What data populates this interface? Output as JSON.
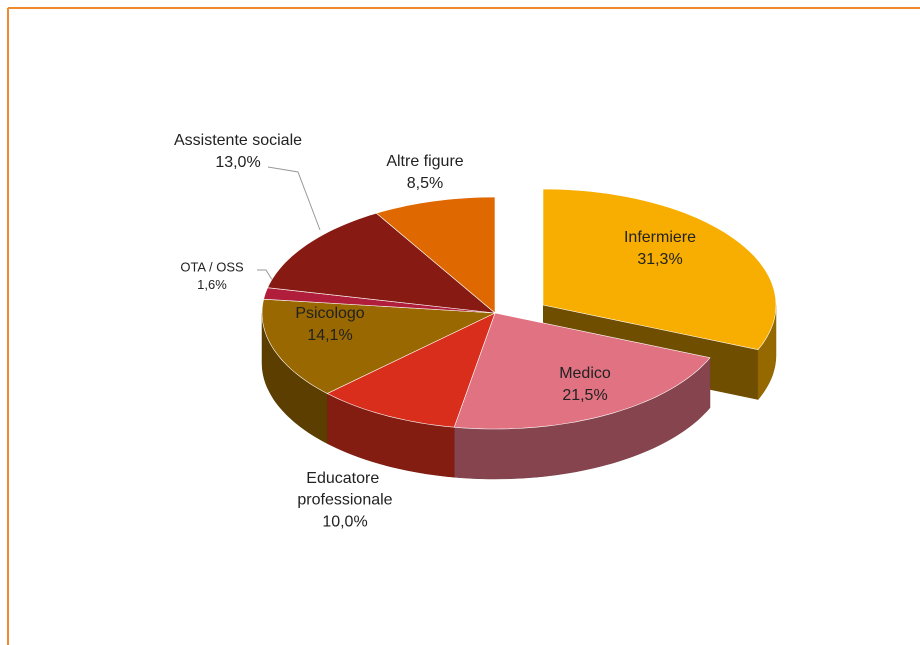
{
  "chart_data": {
    "type": "pie",
    "categories": [
      "Infermiere",
      "Medico",
      "Educatore professionale",
      "Psicologo",
      "OTA / OSS",
      "Assistente sociale",
      "Altre figure"
    ],
    "values": [
      31.3,
      21.5,
      10.0,
      14.1,
      1.6,
      13.0,
      8.5
    ],
    "value_labels": [
      "31,3%",
      "21,5%",
      "10,0%",
      "14,1%",
      "1,6%",
      "13,0%",
      "8,5%"
    ],
    "colors": [
      "#f8ae00",
      "#e07282",
      "#da2e1c",
      "#996800",
      "#b01e3c",
      "#871a12",
      "#df6800"
    ]
  }
}
